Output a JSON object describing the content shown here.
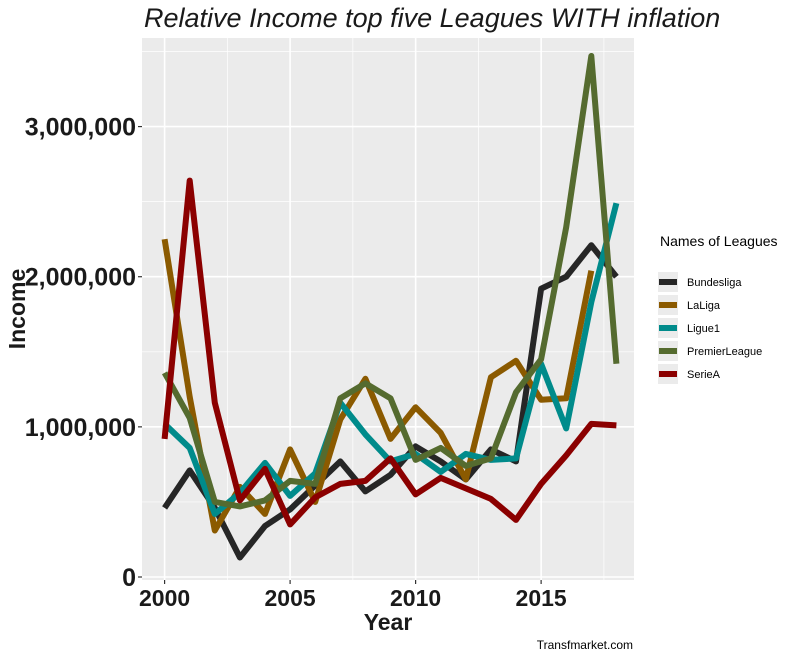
{
  "chart_data": {
    "type": "line",
    "title": "Relative Income top five Leagues   WITH inflation",
    "xlabel": "Year",
    "ylabel": "Income",
    "caption": "Transfmarket.com",
    "legend_title": "Names of Leagues",
    "legend_position": "right",
    "grid": true,
    "xlim": [
      1999.1,
      2018.7
    ],
    "ylim": [
      -20000,
      3590000
    ],
    "x_ticks": [
      2000,
      2005,
      2010,
      2015
    ],
    "x_tick_labels": [
      "2000",
      "2005",
      "2010",
      "2015"
    ],
    "y_ticks": [
      0,
      1000000,
      2000000,
      3000000
    ],
    "y_tick_labels": [
      "0",
      "1,000,000",
      "2,000,000",
      "3,000,000"
    ],
    "series": [
      {
        "name": "Bundesliga",
        "color": "#262626",
        "x": [
          2000,
          2001,
          2002,
          2003,
          2004,
          2005,
          2006,
          2007,
          2008,
          2009,
          2010,
          2011,
          2012,
          2013,
          2014,
          2015,
          2016,
          2017,
          2018
        ],
        "y": [
          460000,
          710000,
          460000,
          130000,
          340000,
          450000,
          610000,
          770000,
          570000,
          680000,
          870000,
          770000,
          650000,
          850000,
          770000,
          1920000,
          2000000,
          2210000,
          2000000
        ]
      },
      {
        "name": "LaLiga",
        "color": "#8b5a00",
        "x": [
          2000,
          2001,
          2002,
          2003,
          2004,
          2005,
          2006,
          2007,
          2008,
          2009,
          2010,
          2011,
          2012,
          2013,
          2014,
          2015,
          2016,
          2017
        ],
        "y": [
          2250000,
          1200000,
          310000,
          600000,
          420000,
          850000,
          500000,
          1050000,
          1320000,
          920000,
          1130000,
          960000,
          650000,
          1330000,
          1440000,
          1180000,
          1190000,
          2040000
        ]
      },
      {
        "name": "Ligue1",
        "color": "#008b8b",
        "x": [
          2000,
          2001,
          2002,
          2003,
          2004,
          2005,
          2006,
          2007,
          2008,
          2009,
          2010,
          2011,
          2012,
          2013,
          2014,
          2015,
          2016,
          2017,
          2018
        ],
        "y": [
          1020000,
          860000,
          420000,
          560000,
          760000,
          540000,
          690000,
          1160000,
          950000,
          770000,
          820000,
          700000,
          820000,
          780000,
          790000,
          1420000,
          990000,
          1830000,
          2490000
        ]
      },
      {
        "name": "PremierLeague",
        "color": "#556b2f",
        "x": [
          2000,
          2001,
          2002,
          2003,
          2004,
          2005,
          2006,
          2007,
          2008,
          2009,
          2010,
          2011,
          2012,
          2013,
          2014,
          2015,
          2016,
          2017,
          2018
        ],
        "y": [
          1360000,
          1060000,
          500000,
          470000,
          510000,
          640000,
          620000,
          1190000,
          1290000,
          1190000,
          780000,
          860000,
          740000,
          790000,
          1230000,
          1450000,
          2330000,
          3470000,
          1420000
        ]
      },
      {
        "name": "SerieA",
        "color": "#8b0000",
        "x": [
          2000,
          2001,
          2002,
          2003,
          2004,
          2005,
          2006,
          2007,
          2008,
          2009,
          2010,
          2011,
          2012,
          2013,
          2014,
          2015,
          2016,
          2017,
          2018
        ],
        "y": [
          920000,
          2640000,
          1160000,
          510000,
          720000,
          350000,
          530000,
          620000,
          640000,
          790000,
          550000,
          660000,
          590000,
          520000,
          380000,
          620000,
          810000,
          1020000,
          1010000
        ]
      }
    ]
  }
}
